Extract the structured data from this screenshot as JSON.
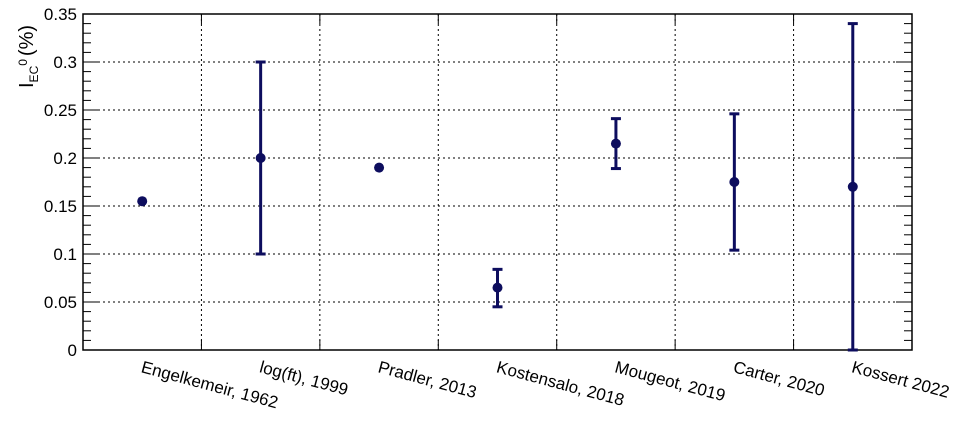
{
  "chart_data": {
    "type": "scatter",
    "ylabel": {
      "main": "I",
      "subscript": "EC",
      "superscript": "0",
      "unit": "(%)"
    },
    "ylim": [
      0,
      0.35
    ],
    "yticks": [
      "0",
      "0.05",
      "0.1",
      "0.15",
      "0.2",
      "0.25",
      "0.3",
      "0.35"
    ],
    "grid": true,
    "categories": [
      "Engelkemeir, 1962",
      "log(ft), 1999",
      "Pradler, 2013",
      "Kostensalo, 2018",
      "Mougeot, 2019",
      "Carter, 2020",
      "Kossert 2022"
    ],
    "series": [
      {
        "values": [
          0.155,
          0.2,
          0.19,
          0.065,
          0.215,
          0.175,
          0.17
        ],
        "err_low": [
          null,
          0.1,
          null,
          0.045,
          0.189,
          0.104,
          0.0
        ],
        "err_high": [
          null,
          0.3,
          null,
          0.084,
          0.241,
          0.246,
          0.34
        ]
      }
    ],
    "colors": {
      "marker": "#0d0d5e",
      "grid": "#000000"
    }
  }
}
